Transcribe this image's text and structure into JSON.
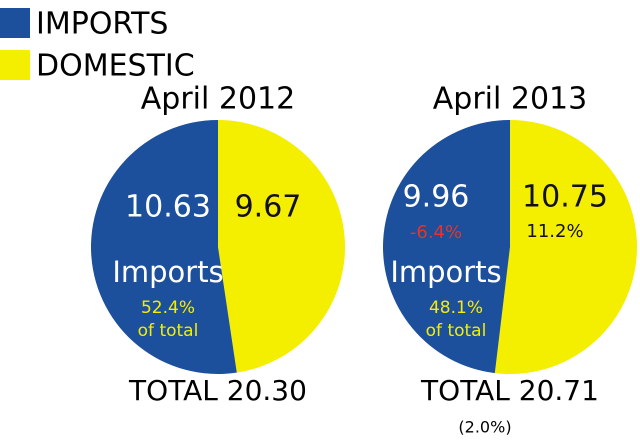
{
  "legend": {
    "labels": [
      "IMPORTS",
      "DOMESTIC"
    ],
    "colors": [
      "#1c4f9c",
      "#f4ee00"
    ]
  },
  "chart_data": [
    {
      "type": "pie",
      "title": "April 2012",
      "values": [
        10.63,
        9.67
      ],
      "colors": [
        "#1c4f9c",
        "#f4ee00"
      ],
      "slice_label": "Imports",
      "share_label": "52.4%",
      "share_note": "of total",
      "total_label": "TOTAL 20.30"
    },
    {
      "type": "pie",
      "title": "April 2013",
      "values": [
        9.96,
        10.75
      ],
      "colors": [
        "#1c4f9c",
        "#f4ee00"
      ],
      "change_labels": [
        "-6.4%",
        "11.2%"
      ],
      "slice_label": "Imports",
      "share_label": "48.1%",
      "share_note": "of total",
      "total_label": "TOTAL 20.71",
      "total_change": "(2.0%)"
    }
  ]
}
